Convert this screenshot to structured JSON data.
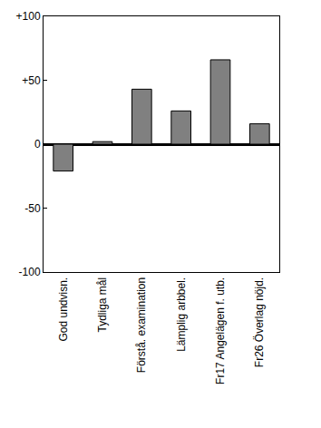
{
  "chart_data": {
    "type": "bar",
    "categories": [
      "God undvisn.",
      "Tydliga mål",
      "Förstå. examination",
      "Lämplig arbbel.",
      "Fr17 Angelägen f. utb.",
      "Fr26 Överlag nöjd."
    ],
    "values": [
      -21,
      2,
      43,
      26,
      66,
      16
    ],
    "color": "#808080",
    "ylim": [
      -100,
      100
    ],
    "yticks": [
      {
        "value": -100,
        "label": "-100"
      },
      {
        "value": -50,
        "label": "-50"
      },
      0,
      {
        "value": 50,
        "label": "+50"
      },
      {
        "value": 100,
        "label": "+100"
      }
    ],
    "grid": false
  }
}
